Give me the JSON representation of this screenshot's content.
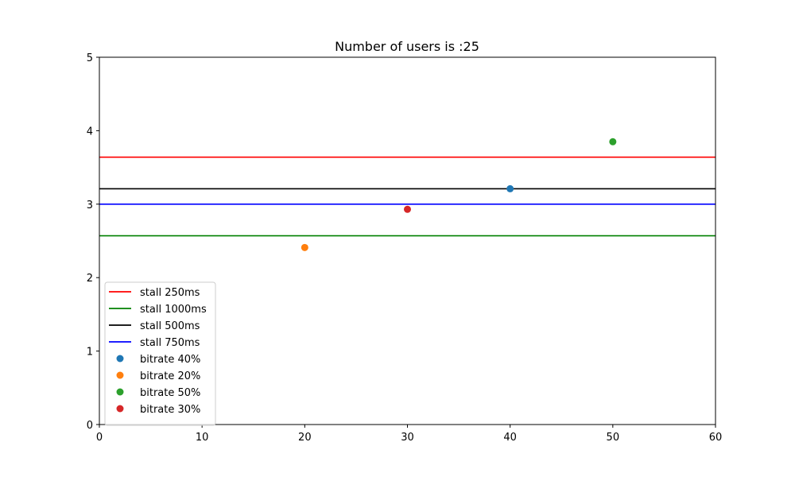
{
  "chart_data": {
    "type": "scatter",
    "title": "Number of users is :25",
    "xlabel": "",
    "ylabel": "",
    "xlim": [
      0,
      60
    ],
    "ylim": [
      0,
      5
    ],
    "xticks": [
      "0",
      "10",
      "20",
      "30",
      "40",
      "50",
      "60"
    ],
    "yticks": [
      "0",
      "1",
      "2",
      "3",
      "4",
      "5"
    ],
    "grid": false,
    "legend_position": "lower-left",
    "hlines": [
      {
        "name": "stall 250ms",
        "y": 3.64,
        "color": "#ff0000"
      },
      {
        "name": "stall 1000ms",
        "y": 2.57,
        "color": "#008000"
      },
      {
        "name": "stall 500ms",
        "y": 3.21,
        "color": "#000000"
      },
      {
        "name": "stall 750ms",
        "y": 3.0,
        "color": "#0000ff"
      }
    ],
    "series": [
      {
        "name": "bitrate 40%",
        "x": [
          40
        ],
        "y": [
          3.21
        ],
        "color": "#1f77b4"
      },
      {
        "name": "bitrate 20%",
        "x": [
          20
        ],
        "y": [
          2.41
        ],
        "color": "#ff7f0e"
      },
      {
        "name": "bitrate 50%",
        "x": [
          50
        ],
        "y": [
          3.85
        ],
        "color": "#2ca02c"
      },
      {
        "name": "bitrate 30%",
        "x": [
          30
        ],
        "y": [
          2.93
        ],
        "color": "#d62728"
      }
    ]
  }
}
